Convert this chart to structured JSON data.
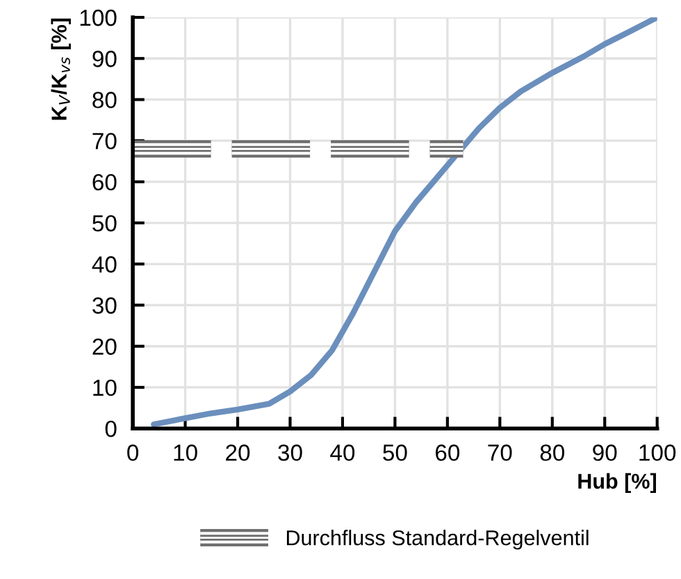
{
  "chart_data": {
    "type": "line",
    "xlabel": "Hub [%]",
    "ylabel": "K$_{V}$/K$_{vs}$ [%]",
    "xlim": [
      0,
      100
    ],
    "ylim": [
      0,
      100
    ],
    "xticks": [
      0,
      10,
      20,
      30,
      40,
      50,
      60,
      70,
      80,
      90,
      100
    ],
    "yticks": [
      0,
      10,
      20,
      30,
      40,
      50,
      60,
      70,
      80,
      90,
      100
    ],
    "grid": true,
    "legend": "bottom",
    "marker": "none",
    "series": [
      {
        "color": "#6b8fbd",
        "line_style": "solid",
        "x": [
          4,
          10,
          15,
          20,
          26,
          30,
          34,
          38,
          42,
          46,
          50,
          54,
          58,
          62,
          66,
          70,
          74,
          80,
          86,
          90,
          95,
          100
        ],
        "values": [
          1,
          2.5,
          3.7,
          4.6,
          6,
          9,
          13,
          19,
          28,
          38,
          48,
          55,
          61,
          67,
          73,
          78,
          82,
          86.5,
          90.5,
          93.5,
          96.7,
          100
        ]
      },
      {
        "name": "Durchfluss Standard-Regelventil",
        "color": "#707070",
        "line_style": "dashed",
        "x": [
          0,
          63
        ],
        "values": [
          68,
          68
        ]
      }
    ]
  }
}
